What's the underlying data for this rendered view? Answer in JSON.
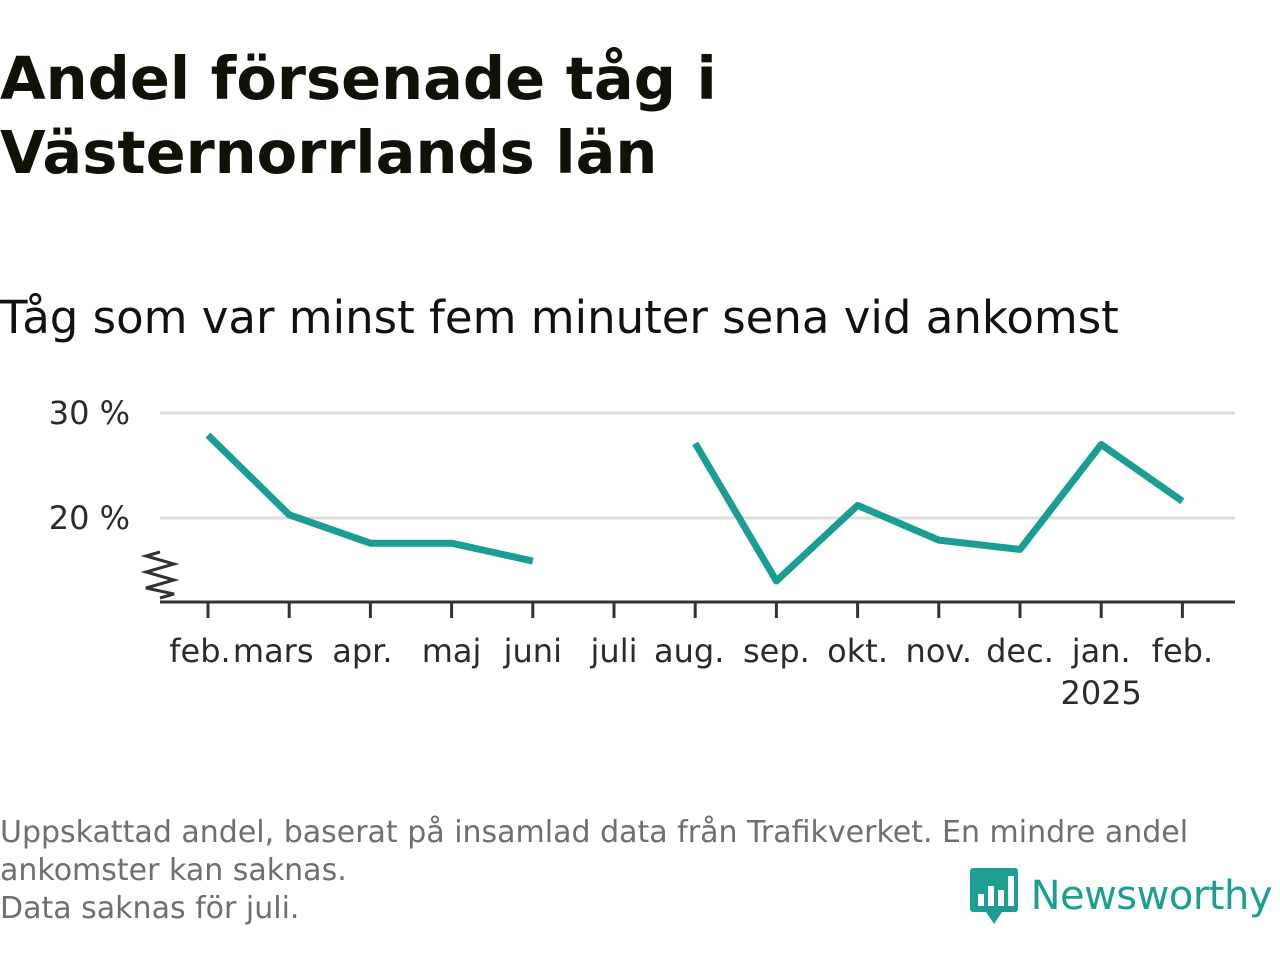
{
  "header": {
    "title": "Andel försenade tåg i Västernorrlands län",
    "subtitle": "Tåg som var minst fem minuter sena vid ankomst"
  },
  "chart_data": {
    "type": "line",
    "categories": [
      "feb.",
      "mars",
      "apr.",
      "maj",
      "juni",
      "juli",
      "aug.",
      "sep.",
      "okt.",
      "nov.",
      "dec.",
      "jan.",
      "feb."
    ],
    "year_labels": [
      {
        "category_index": 11,
        "label": "2025"
      }
    ],
    "series": [
      {
        "values": [
          27.9,
          20.3,
          17.6,
          17.6,
          15.9,
          null,
          27.1,
          14.0,
          21.2,
          17.9,
          17.0,
          27.0,
          21.6
        ],
        "color": "#1a9e94"
      }
    ],
    "y_ticks": [
      {
        "value": 20,
        "label": "20 %"
      },
      {
        "value": 30,
        "label": "30 %"
      }
    ],
    "ylim": [
      12,
      31
    ],
    "y_axis_break": true,
    "grid": "horizontal",
    "legend": "none"
  },
  "footer": {
    "note_lines": [
      "Uppskattad andel, baserat på insamlad data från Trafikverket. En mindre andel ankomster kan saknas.",
      "Data saknas för juli."
    ],
    "brand_name": "Newsworthy",
    "brand_color": "#1c9e92"
  }
}
